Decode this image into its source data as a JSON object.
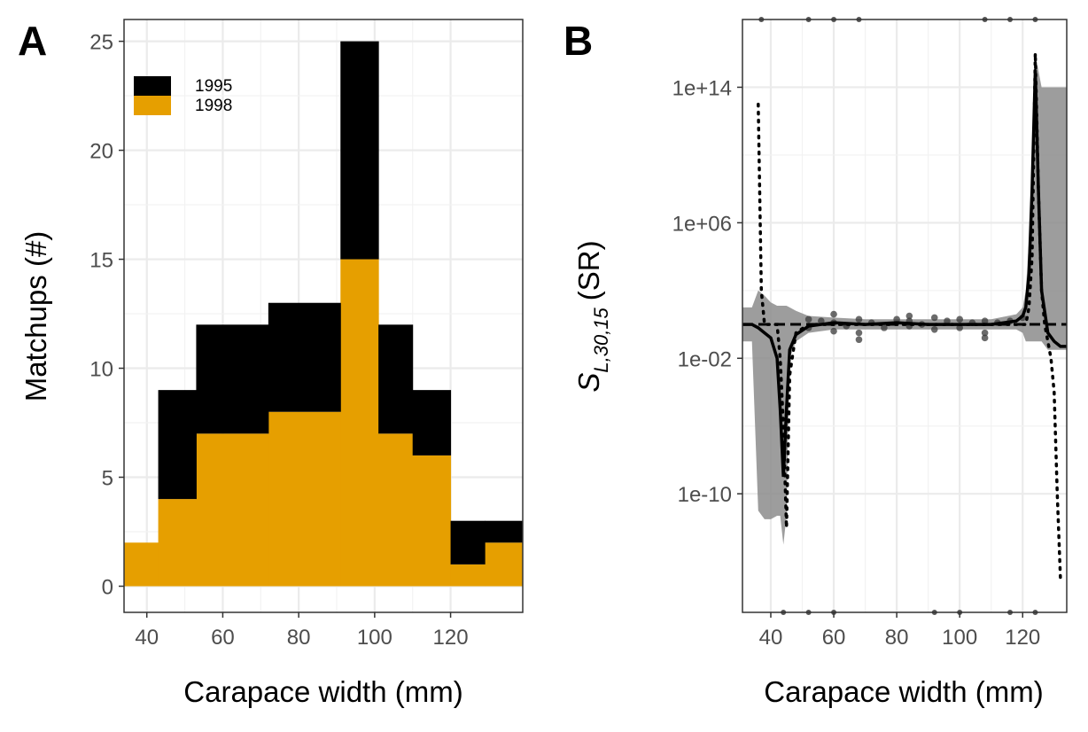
{
  "chart_data": [
    {
      "panel_label": "A",
      "type": "bar",
      "stacked": true,
      "xlabel": "Carapace width (mm)",
      "ylabel": "Matchups (#)",
      "xlim": [
        34,
        139
      ],
      "ylim": [
        -1.2,
        26
      ],
      "xticks": [
        "40",
        "60",
        "80",
        "100",
        "120"
      ],
      "xtick_values": [
        40,
        60,
        80,
        100,
        120
      ],
      "yticks": [
        "0",
        "5",
        "10",
        "15",
        "20",
        "25"
      ],
      "ytick_values": [
        0,
        5,
        10,
        15,
        20,
        25
      ],
      "bins": [
        [
          34,
          43
        ],
        [
          43,
          53
        ],
        [
          53,
          72
        ],
        [
          72,
          91
        ],
        [
          91,
          101
        ],
        [
          101,
          110
        ],
        [
          110,
          120
        ],
        [
          120,
          129
        ],
        [
          129,
          139
        ]
      ],
      "series": [
        {
          "name": "1998",
          "color": "#E69F00",
          "values": [
            2,
            4,
            7,
            8,
            15,
            7,
            6,
            1,
            2
          ]
        },
        {
          "name": "1995",
          "color": "#000000",
          "values": [
            0,
            5,
            5,
            5,
            10,
            5,
            3,
            2,
            1
          ]
        }
      ],
      "legend_position": "top-left",
      "grid": true
    },
    {
      "panel_label": "B",
      "type": "line",
      "y_scale": "log10",
      "xlabel": "Carapace width (mm)",
      "ylabel_main": "S",
      "ylabel_subscript": "L,30,15",
      "ylabel_unit": "(SR)",
      "xlim": [
        31,
        134
      ],
      "ylim_log10": [
        -17,
        18
      ],
      "xticks": [
        "40",
        "60",
        "80",
        "100",
        "120"
      ],
      "xtick_values": [
        40,
        60,
        80,
        100,
        120
      ],
      "yticks": [
        "1e+14",
        "1e+06",
        "1e-02",
        "1e-10"
      ],
      "ytick_log10": [
        14,
        6,
        -2,
        -10
      ],
      "reference_line_log10": 0,
      "fit_x": [
        31,
        34,
        36,
        38,
        40,
        42,
        43,
        44,
        45,
        46,
        48,
        52,
        60,
        70,
        80,
        90,
        100,
        110,
        118,
        120,
        121,
        122,
        123,
        124,
        125,
        126,
        128,
        130,
        132,
        134
      ],
      "fit_log10": [
        0,
        0,
        -0.2,
        -0.5,
        -0.8,
        -2,
        -5,
        -9,
        -5,
        -1.5,
        -0.6,
        -0.1,
        0.1,
        0,
        0.1,
        0,
        0,
        0,
        0.2,
        0.5,
        1,
        3,
        8,
        15,
        8,
        2,
        -0.5,
        -1,
        -1.3,
        -1.3
      ],
      "band_upper_log10": [
        1,
        1,
        2,
        1.7,
        1.3,
        1.1,
        1.1,
        1.1,
        1.1,
        1,
        0.8,
        0.5,
        0.4,
        0.3,
        0.3,
        0.3,
        0.3,
        0.3,
        0.6,
        1,
        2,
        5,
        10,
        16,
        15,
        14,
        14,
        14,
        14,
        14
      ],
      "band_lower_log10": [
        -1,
        -1,
        -11,
        -11.5,
        -11.5,
        -11.3,
        -11.3,
        -13,
        -11.3,
        -2,
        -1,
        -0.5,
        -0.3,
        -0.3,
        -0.3,
        -0.3,
        -0.3,
        -0.3,
        -0.3,
        -0.5,
        -1,
        -1,
        -1,
        -1,
        -1,
        -1,
        -1.5,
        -1.5,
        -1.5,
        -1.5
      ],
      "dotted_x": [
        36,
        37,
        38,
        40,
        42,
        43,
        44,
        45,
        46,
        48,
        52,
        60,
        70,
        80,
        90,
        100,
        110,
        118,
        121,
        122,
        123,
        124,
        125,
        126,
        127,
        128,
        129,
        130,
        131,
        132
      ],
      "dotted_log10": [
        13,
        2,
        0,
        0,
        0,
        -2,
        -6,
        -12,
        -3,
        -0.5,
        0,
        0,
        0,
        0,
        0,
        0,
        0,
        0,
        0,
        1,
        4,
        16,
        8,
        2,
        0,
        -1,
        -2,
        -4,
        -10,
        -15
      ],
      "points": [
        {
          "x": 52,
          "y_log10": 0.3
        },
        {
          "x": 52,
          "y_log10": -0.2
        },
        {
          "x": 56,
          "y_log10": 0.2
        },
        {
          "x": 60,
          "y_log10": 0.6
        },
        {
          "x": 60,
          "y_log10": -0.4
        },
        {
          "x": 60,
          "y_log10": 0.1
        },
        {
          "x": 64,
          "y_log10": -0.1
        },
        {
          "x": 68,
          "y_log10": -0.5
        },
        {
          "x": 68,
          "y_log10": 0.3
        },
        {
          "x": 68,
          "y_log10": -0.9
        },
        {
          "x": 72,
          "y_log10": 0.1
        },
        {
          "x": 76,
          "y_log10": -0.2
        },
        {
          "x": 80,
          "y_log10": 0.3
        },
        {
          "x": 84,
          "y_log10": 0.5
        },
        {
          "x": 84,
          "y_log10": -0.1
        },
        {
          "x": 84,
          "y_log10": 0.2
        },
        {
          "x": 88,
          "y_log10": 0
        },
        {
          "x": 92,
          "y_log10": 0.4
        },
        {
          "x": 92,
          "y_log10": -0.3
        },
        {
          "x": 96,
          "y_log10": 0.2
        },
        {
          "x": 100,
          "y_log10": -0.2
        },
        {
          "x": 100,
          "y_log10": 0.3
        },
        {
          "x": 104,
          "y_log10": 0.1
        },
        {
          "x": 108,
          "y_log10": -0.5
        },
        {
          "x": 108,
          "y_log10": 0.2
        },
        {
          "x": 108,
          "y_log10": -0.8
        },
        {
          "x": 112,
          "y_log10": 0.1
        },
        {
          "x": 116,
          "y_log10": 0.2
        },
        {
          "x": 120,
          "y_log10": 0.4
        }
      ],
      "rug_top_x": [
        37,
        52,
        60,
        68,
        108,
        116,
        124
      ],
      "rug_bottom_x": [
        44,
        52,
        60,
        92,
        100,
        116,
        124
      ],
      "grid": true
    }
  ]
}
